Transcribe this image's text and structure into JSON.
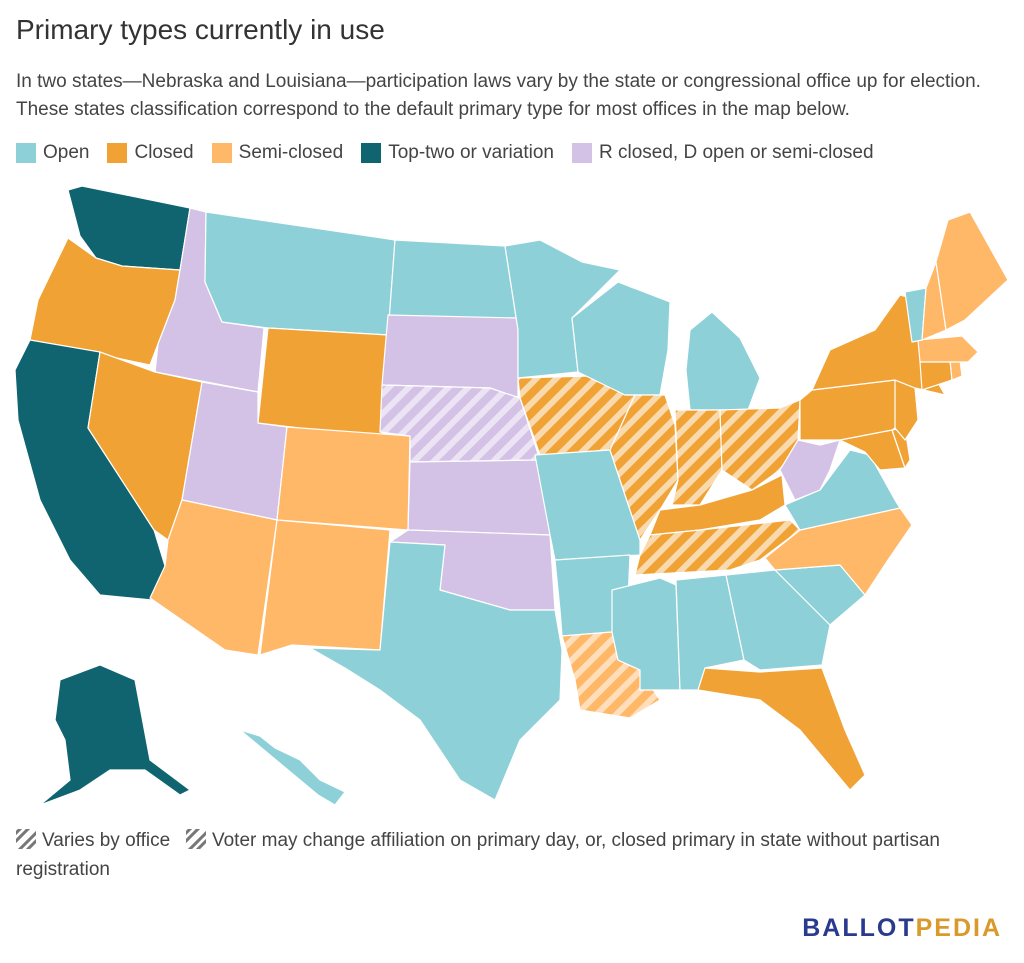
{
  "title": "Primary types currently in use",
  "subtitle": "In two states—Nebraska and Louisiana—participation laws vary by the state or congressional office up for election. These states classification correspond to the default primary type for most offices in the map below.",
  "colors": {
    "open": "#8dd0d8",
    "closed": "#f0a234",
    "semi": "#ffb868",
    "toptwo": "#0f6470",
    "rclosed": "#d4c2e6",
    "hatch_grey": "#666666"
  },
  "legend": [
    {
      "key": "open",
      "label": "Open"
    },
    {
      "key": "closed",
      "label": "Closed"
    },
    {
      "key": "semi",
      "label": "Semi-closed"
    },
    {
      "key": "toptwo",
      "label": "Top-two or variation"
    },
    {
      "key": "rclosed",
      "label": "R closed, D open or semi-closed"
    }
  ],
  "notes": {
    "varies": "Varies by office",
    "voter_change": "Voter may change affiliation on primary day, or, closed primary in state without partisan registration"
  },
  "brand": {
    "part1": "BALLOT",
    "part2": "PEDIA"
  },
  "states": [
    {
      "name": "Washington",
      "type": "toptwo"
    },
    {
      "name": "Oregon",
      "type": "closed"
    },
    {
      "name": "California",
      "type": "toptwo"
    },
    {
      "name": "Idaho",
      "type": "rclosed"
    },
    {
      "name": "Nevada",
      "type": "closed"
    },
    {
      "name": "Utah",
      "type": "rclosed"
    },
    {
      "name": "Arizona",
      "type": "semi"
    },
    {
      "name": "Montana",
      "type": "open"
    },
    {
      "name": "Wyoming",
      "type": "closed"
    },
    {
      "name": "Colorado",
      "type": "semi"
    },
    {
      "name": "New Mexico",
      "type": "semi"
    },
    {
      "name": "North Dakota",
      "type": "open"
    },
    {
      "name": "South Dakota",
      "type": "rclosed"
    },
    {
      "name": "Nebraska",
      "type": "rclosed",
      "hatch": "varies"
    },
    {
      "name": "Kansas",
      "type": "rclosed"
    },
    {
      "name": "Oklahoma",
      "type": "rclosed"
    },
    {
      "name": "Texas",
      "type": "open"
    },
    {
      "name": "Minnesota",
      "type": "open"
    },
    {
      "name": "Iowa",
      "type": "closed",
      "hatch": "change"
    },
    {
      "name": "Missouri",
      "type": "open"
    },
    {
      "name": "Arkansas",
      "type": "open"
    },
    {
      "name": "Louisiana",
      "type": "semi",
      "hatch": "varies"
    },
    {
      "name": "Wisconsin",
      "type": "open"
    },
    {
      "name": "Illinois",
      "type": "closed",
      "hatch": "change"
    },
    {
      "name": "Michigan",
      "type": "open"
    },
    {
      "name": "Indiana",
      "type": "closed",
      "hatch": "change"
    },
    {
      "name": "Ohio",
      "type": "closed",
      "hatch": "change"
    },
    {
      "name": "Kentucky",
      "type": "closed"
    },
    {
      "name": "Tennessee",
      "type": "closed",
      "hatch": "change"
    },
    {
      "name": "Mississippi",
      "type": "open"
    },
    {
      "name": "Alabama",
      "type": "open"
    },
    {
      "name": "Georgia",
      "type": "open"
    },
    {
      "name": "Florida",
      "type": "closed"
    },
    {
      "name": "South Carolina",
      "type": "open"
    },
    {
      "name": "North Carolina",
      "type": "semi"
    },
    {
      "name": "Virginia",
      "type": "open"
    },
    {
      "name": "West Virginia",
      "type": "rclosed"
    },
    {
      "name": "Maryland",
      "type": "closed"
    },
    {
      "name": "Delaware",
      "type": "closed"
    },
    {
      "name": "Pennsylvania",
      "type": "closed"
    },
    {
      "name": "New Jersey",
      "type": "closed"
    },
    {
      "name": "New York",
      "type": "closed"
    },
    {
      "name": "Connecticut",
      "type": "closed"
    },
    {
      "name": "Rhode Island",
      "type": "semi"
    },
    {
      "name": "Massachusetts",
      "type": "semi"
    },
    {
      "name": "Vermont",
      "type": "open"
    },
    {
      "name": "New Hampshire",
      "type": "semi"
    },
    {
      "name": "Maine",
      "type": "semi"
    },
    {
      "name": "Alaska",
      "type": "toptwo"
    },
    {
      "name": "Hawaii",
      "type": "open"
    }
  ]
}
